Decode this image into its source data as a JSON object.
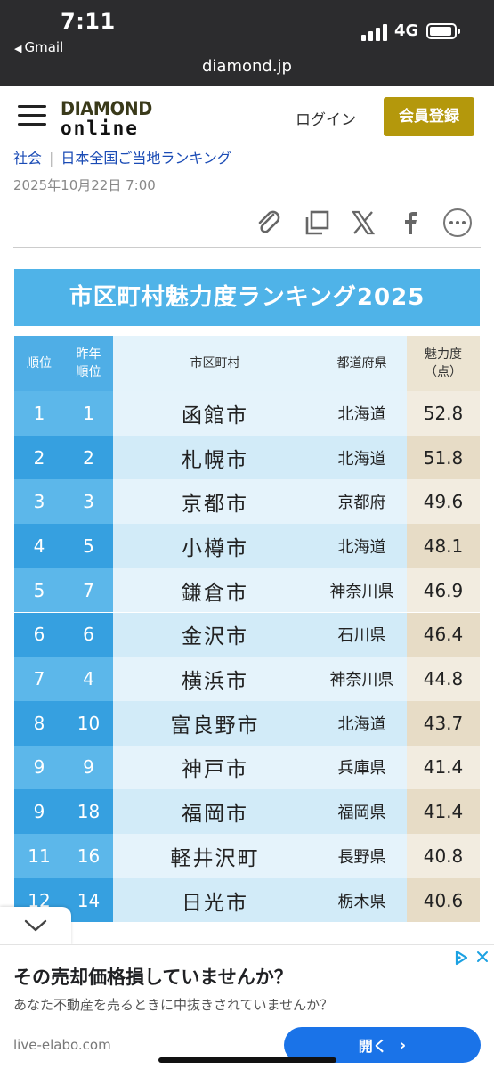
{
  "status_bar": {
    "time": "7:11",
    "back_app": "Gmail",
    "network": "4G"
  },
  "browser": {
    "url": "diamond.jp"
  },
  "header": {
    "logo_line1": "DIAMOND",
    "logo_line2": "online",
    "login_label": "ログイン",
    "register_label": "会員登録",
    "accent_color": "#b4980c"
  },
  "article": {
    "category": "社会",
    "series": "日本全国ご当地ランキング",
    "date": "2025年10月22日 7:00",
    "share_icons": [
      "paperclip-icon",
      "copy-icon",
      "x-icon",
      "facebook-icon",
      "more-icon"
    ]
  },
  "ranking": {
    "title": "市区町村魅力度ランキング2025",
    "headers": {
      "rank": "順位",
      "prev_rank_line1": "昨年",
      "prev_rank_line2": "順位",
      "city": "市区町村",
      "prefecture": "都道府県",
      "score_line1": "魅力度",
      "score_line2": "（点）"
    },
    "rows": [
      {
        "rank": "1",
        "prev": "1",
        "city": "函館市",
        "pref": "北海道",
        "score": "52.8"
      },
      {
        "rank": "2",
        "prev": "2",
        "city": "札幌市",
        "pref": "北海道",
        "score": "51.8"
      },
      {
        "rank": "3",
        "prev": "3",
        "city": "京都市",
        "pref": "京都府",
        "score": "49.6"
      },
      {
        "rank": "4",
        "prev": "5",
        "city": "小樽市",
        "pref": "北海道",
        "score": "48.1"
      },
      {
        "rank": "5",
        "prev": "7",
        "city": "鎌倉市",
        "pref": "神奈川県",
        "score": "46.9"
      },
      {
        "rank": "6",
        "prev": "6",
        "city": "金沢市",
        "pref": "石川県",
        "score": "46.4"
      },
      {
        "rank": "7",
        "prev": "4",
        "city": "横浜市",
        "pref": "神奈川県",
        "score": "44.8"
      },
      {
        "rank": "8",
        "prev": "10",
        "city": "富良野市",
        "pref": "北海道",
        "score": "43.7"
      },
      {
        "rank": "9",
        "prev": "9",
        "city": "神戸市",
        "pref": "兵庫県",
        "score": "41.4"
      },
      {
        "rank": "9",
        "prev": "18",
        "city": "福岡市",
        "pref": "福岡県",
        "score": "41.4"
      },
      {
        "rank": "11",
        "prev": "16",
        "city": "軽井沢町",
        "pref": "長野県",
        "score": "40.8"
      },
      {
        "rank": "12",
        "prev": "14",
        "city": "日光市",
        "pref": "栃木県",
        "score": "40.6"
      }
    ]
  },
  "ad": {
    "title": "その売却価格損していませんか？",
    "description": "あなた不動産を売るときに中抜きされていませんか？",
    "domain": "live-elabo.com",
    "button_label": "開く",
    "button_color": "#1a73e8"
  }
}
